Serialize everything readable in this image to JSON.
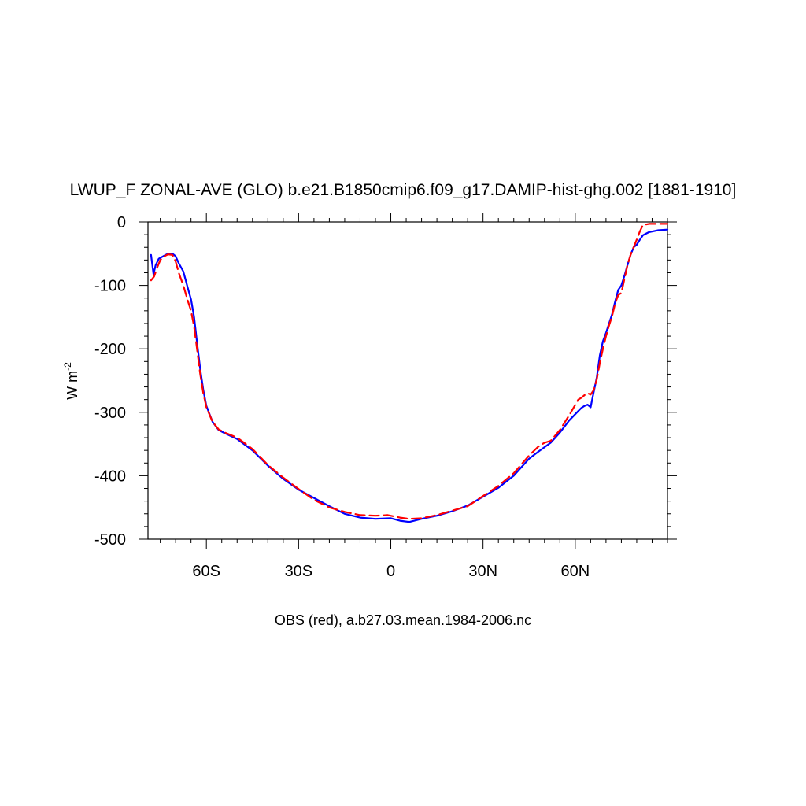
{
  "chart_data": {
    "type": "line",
    "title": "LWUP_F ZONAL-AVE (GLO) b.e21.B1850cmip6.f09_g17.DAMIP-hist-ghg.002 [1881-1910]",
    "xlabel": "OBS (red), a.b27.03.mean.1984-2006.nc",
    "ylabel_main": "W m",
    "ylabel_sup": "-2",
    "xlim": [
      -79,
      90
    ],
    "ylim": [
      -500,
      0
    ],
    "x_ticks": [
      {
        "value": -60,
        "label": "60S"
      },
      {
        "value": -30,
        "label": "30S"
      },
      {
        "value": 0,
        "label": "0"
      },
      {
        "value": 30,
        "label": "30N"
      },
      {
        "value": 60,
        "label": "60N"
      }
    ],
    "x_minor_step": 5,
    "y_ticks": [
      {
        "value": 0,
        "label": "0"
      },
      {
        "value": -100,
        "label": "-100"
      },
      {
        "value": -200,
        "label": "-200"
      },
      {
        "value": -300,
        "label": "-300"
      },
      {
        "value": -400,
        "label": "-400"
      },
      {
        "value": -500,
        "label": "-500"
      }
    ],
    "y_minor_step": 20,
    "grid": false,
    "series": [
      {
        "color": "#0000ff",
        "dash": "solid",
        "points": [
          [
            -78,
            -52
          ],
          [
            -77.2,
            -82
          ],
          [
            -76.5,
            -68
          ],
          [
            -75.5,
            -58
          ],
          [
            -74,
            -54
          ],
          [
            -72.5,
            -50
          ],
          [
            -71,
            -50
          ],
          [
            -70,
            -54
          ],
          [
            -69,
            -65
          ],
          [
            -67.5,
            -78
          ],
          [
            -66,
            -105
          ],
          [
            -65,
            -122
          ],
          [
            -64,
            -150
          ],
          [
            -63,
            -192
          ],
          [
            -62,
            -232
          ],
          [
            -61,
            -265
          ],
          [
            -60,
            -290
          ],
          [
            -58,
            -315
          ],
          [
            -56,
            -328
          ],
          [
            -54,
            -333
          ],
          [
            -50,
            -342
          ],
          [
            -45,
            -360
          ],
          [
            -40,
            -384
          ],
          [
            -35,
            -405
          ],
          [
            -30,
            -422
          ],
          [
            -25,
            -435
          ],
          [
            -20,
            -448
          ],
          [
            -15,
            -460
          ],
          [
            -10,
            -466
          ],
          [
            -5,
            -468
          ],
          [
            0,
            -467
          ],
          [
            3,
            -471
          ],
          [
            6,
            -473
          ],
          [
            10,
            -468
          ],
          [
            15,
            -463
          ],
          [
            20,
            -456
          ],
          [
            25,
            -447
          ],
          [
            30,
            -433
          ],
          [
            35,
            -419
          ],
          [
            40,
            -400
          ],
          [
            45,
            -373
          ],
          [
            48,
            -362
          ],
          [
            50,
            -355
          ],
          [
            52,
            -348
          ],
          [
            55,
            -332
          ],
          [
            58,
            -313
          ],
          [
            61,
            -298
          ],
          [
            62,
            -293
          ],
          [
            63,
            -290
          ],
          [
            64,
            -288
          ],
          [
            65,
            -292
          ],
          [
            65.5,
            -280
          ],
          [
            67,
            -245
          ],
          [
            68,
            -210
          ],
          [
            69,
            -188
          ],
          [
            70,
            -175
          ],
          [
            71,
            -160
          ],
          [
            72,
            -145
          ],
          [
            73,
            -125
          ],
          [
            74,
            -107
          ],
          [
            75,
            -100
          ],
          [
            76,
            -85
          ],
          [
            77,
            -68
          ],
          [
            78,
            -52
          ],
          [
            79,
            -40
          ],
          [
            80,
            -36
          ],
          [
            81,
            -28
          ],
          [
            82,
            -21
          ],
          [
            84,
            -16
          ],
          [
            87,
            -13
          ],
          [
            90,
            -12
          ]
        ]
      },
      {
        "color": "#ff0000",
        "dash": "dashed",
        "points": [
          [
            -78,
            -92
          ],
          [
            -77,
            -86
          ],
          [
            -76,
            -72
          ],
          [
            -75,
            -60
          ],
          [
            -74,
            -55
          ],
          [
            -72.5,
            -51
          ],
          [
            -71,
            -52
          ],
          [
            -70,
            -62
          ],
          [
            -69,
            -80
          ],
          [
            -67.5,
            -100
          ],
          [
            -66,
            -125
          ],
          [
            -65,
            -140
          ],
          [
            -64,
            -165
          ],
          [
            -63,
            -202
          ],
          [
            -62,
            -240
          ],
          [
            -61,
            -270
          ],
          [
            -60,
            -292
          ],
          [
            -58,
            -315
          ],
          [
            -56,
            -327
          ],
          [
            -54,
            -332
          ],
          [
            -50,
            -340
          ],
          [
            -45,
            -358
          ],
          [
            -40,
            -383
          ],
          [
            -35,
            -403
          ],
          [
            -30,
            -421
          ],
          [
            -25,
            -438
          ],
          [
            -20,
            -450
          ],
          [
            -15,
            -457
          ],
          [
            -10,
            -462
          ],
          [
            -5,
            -463
          ],
          [
            -1,
            -462
          ],
          [
            3,
            -466
          ],
          [
            6,
            -468
          ],
          [
            10,
            -467
          ],
          [
            15,
            -462
          ],
          [
            20,
            -455
          ],
          [
            25,
            -448
          ],
          [
            30,
            -432
          ],
          [
            35,
            -416
          ],
          [
            40,
            -396
          ],
          [
            45,
            -368
          ],
          [
            48,
            -354
          ],
          [
            50,
            -348
          ],
          [
            52,
            -345
          ],
          [
            55,
            -328
          ],
          [
            58,
            -305
          ],
          [
            61,
            -280
          ],
          [
            62,
            -277
          ],
          [
            63,
            -273
          ],
          [
            64,
            -270
          ],
          [
            65,
            -272
          ],
          [
            66,
            -265
          ],
          [
            67,
            -248
          ],
          [
            68,
            -222
          ],
          [
            69,
            -200
          ],
          [
            70,
            -180
          ],
          [
            71,
            -163
          ],
          [
            72,
            -148
          ],
          [
            73,
            -128
          ],
          [
            74,
            -115
          ],
          [
            75,
            -112
          ],
          [
            76,
            -90
          ],
          [
            77,
            -68
          ],
          [
            78,
            -52
          ],
          [
            79,
            -40
          ],
          [
            80,
            -28
          ],
          [
            81,
            -15
          ],
          [
            82,
            -5
          ],
          [
            84,
            -3
          ],
          [
            87,
            -3
          ],
          [
            90,
            -3
          ]
        ]
      }
    ]
  }
}
